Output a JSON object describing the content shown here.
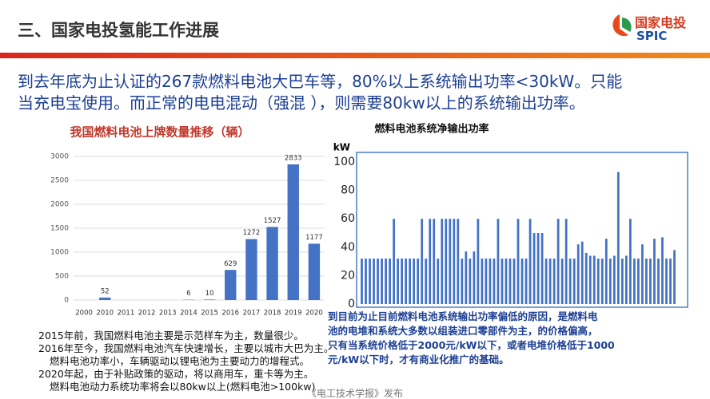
{
  "header": {
    "title": "三、国家电投氢能工作进展",
    "logo_name": "国家电投",
    "logo_abbr": "SPIC"
  },
  "body": {
    "lines": [
      "到去年底为止认证的267款燃料电池大巴车等，80%以上系统输出功率<30kW。只能",
      "当充电宝使用。而正常的电电混动（强混 ），则需要80kw以上的系统输出功率。"
    ]
  },
  "notes": [
    "2015年前，我国燃料电池主要是示范样车为主，数量很少。",
    "2016年至今，我国燃料电池汽车快速增长，主要以城市大巴为主。",
    "燃料电池功率小，车辆驱动以锂电池为主要动力的增程式。",
    "2020年起，由于补贴政策的驱动，将以商用车，重卡等为主。",
    "燃料电池动力系统功率将会以80kw以上(燃料电池>100kw)"
  ],
  "annotation": [
    "到目前为止目前燃料电池系统输出功率偏低的原因，是燃料电",
    "池的电堆和系统大多数以组装进口零部件为主，的价格偏高，",
    "只有当系统价格低于2000元/kW以下，或者电堆价格低于1000",
    "元/kW以下时，才有商业化推广的基础。"
  ],
  "footer": "《电工技术学报》发布",
  "chart_data": [
    {
      "type": "bar",
      "title": "我国燃料电池上牌数量推移（辆）",
      "categories": [
        "2000",
        "2010",
        "2011",
        "2012",
        "2013",
        "2014",
        "2015",
        "2016",
        "2017",
        "2018",
        "2019",
        "2020"
      ],
      "values": [
        null,
        52,
        null,
        null,
        null,
        6,
        10,
        629,
        1272,
        1527,
        2833,
        1177
      ],
      "color": "#4472c4",
      "ylim": [
        0,
        3000
      ],
      "yticks": [
        0,
        500,
        1000,
        1500,
        2000,
        2500,
        3000
      ],
      "grid": true,
      "data_labels": true
    },
    {
      "type": "bar",
      "title": "燃料电池系统净输出功率",
      "y_label": "kW",
      "values": [
        32,
        32,
        32,
        32,
        32,
        32,
        32,
        32,
        60,
        32,
        32,
        32,
        32,
        32,
        32,
        60,
        32,
        60,
        60,
        32,
        60,
        60,
        60,
        60,
        60,
        32,
        37,
        32,
        37,
        60,
        32,
        32,
        32,
        32,
        60,
        32,
        32,
        32,
        32,
        60,
        32,
        32,
        60,
        50,
        50,
        50,
        32,
        32,
        32,
        60,
        32,
        60,
        32,
        32,
        42,
        44,
        36,
        34,
        34,
        32,
        32,
        46,
        32,
        34,
        93,
        32,
        34,
        60,
        32,
        32,
        42,
        32,
        32,
        46,
        32,
        47,
        32,
        32,
        38
      ],
      "color": "#4472c4",
      "ylim": [
        0,
        100
      ],
      "yticks": [
        0,
        20,
        40,
        60,
        80,
        100
      ],
      "grid": false,
      "data_labels": false
    }
  ]
}
